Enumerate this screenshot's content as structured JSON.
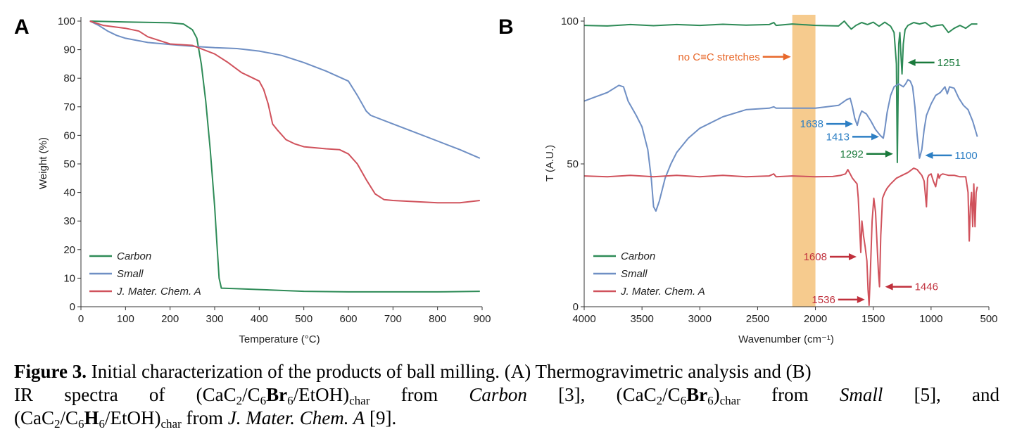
{
  "colors": {
    "carbon": "#2e8b57",
    "small": "#6f8fc4",
    "jmca": "#d0525c",
    "band": "#f5c27a",
    "arrow_annot": "#e8692c",
    "arrow_green": "#1a7a3c",
    "arrow_blue": "#2d7fc4",
    "arrow_red": "#c0303c"
  },
  "legend": {
    "carbon": "Carbon",
    "small": "Small",
    "jmca": "J. Mater. Chem. A"
  },
  "chart_data": [
    {
      "panel": "A",
      "type": "line",
      "xlabel": "Temperature (°C)",
      "ylabel": "Weight (%)",
      "xlim": [
        0,
        900
      ],
      "ylim": [
        0,
        100
      ],
      "xticks": [
        "0",
        "100",
        "200",
        "300",
        "400",
        "500",
        "600",
        "700",
        "800",
        "900"
      ],
      "yticks": [
        "0",
        "10",
        "20",
        "30",
        "40",
        "50",
        "60",
        "70",
        "80",
        "90",
        "100"
      ],
      "grid": false,
      "legend_position": "bottom-left",
      "series": [
        {
          "name": "Carbon",
          "x": [
            20,
            100,
            200,
            230,
            250,
            260,
            270,
            280,
            290,
            300,
            305,
            310,
            315,
            350,
            400,
            500,
            600,
            700,
            800,
            895
          ],
          "y": [
            100,
            99.7,
            99.4,
            99,
            97,
            94,
            85,
            72,
            55,
            35,
            22,
            10,
            6.5,
            6.3,
            6,
            5.4,
            5.2,
            5.2,
            5.2,
            5.4
          ]
        },
        {
          "name": "Small",
          "x": [
            20,
            40,
            60,
            80,
            100,
            150,
            200,
            250,
            300,
            350,
            400,
            450,
            500,
            550,
            600,
            620,
            640,
            650,
            700,
            750,
            800,
            850,
            895
          ],
          "y": [
            100,
            98.5,
            96.5,
            95,
            94,
            92.5,
            91.8,
            91.2,
            90.7,
            90.4,
            89.5,
            88,
            85.5,
            82.5,
            79,
            74,
            68.5,
            67,
            64,
            61,
            58,
            55,
            52
          ]
        },
        {
          "name": "J. Mater. Chem. A",
          "x": [
            20,
            50,
            100,
            130,
            150,
            180,
            200,
            250,
            300,
            330,
            360,
            380,
            400,
            410,
            420,
            430,
            440,
            460,
            480,
            500,
            550,
            580,
            600,
            620,
            640,
            660,
            680,
            700,
            750,
            800,
            850,
            895
          ],
          "y": [
            100,
            98.5,
            97.5,
            96.5,
            94.5,
            93,
            92,
            91.5,
            88.5,
            85.5,
            82,
            80.5,
            79,
            76,
            71,
            64,
            62,
            58.5,
            57,
            56,
            55.3,
            55,
            53.5,
            50,
            44.5,
            39.5,
            37.5,
            37.2,
            36.8,
            36.4,
            36.4,
            37.2
          ]
        }
      ]
    },
    {
      "panel": "B",
      "type": "line",
      "xlabel": "Wavenumber (cm⁻¹)",
      "ylabel": "T (A.U.)",
      "xlim": [
        4000,
        500
      ],
      "ylim": [
        0,
        100
      ],
      "xticks": [
        "4000",
        "3500",
        "3000",
        "2500",
        "2000",
        "1500",
        "1000",
        "500"
      ],
      "yticks": [
        "0",
        "50",
        "100"
      ],
      "grid": false,
      "legend_position": "bottom-left",
      "highlight_band": {
        "from": 2200,
        "to": 2000,
        "label": "no C≡C stretches"
      },
      "annotations": [
        {
          "label": "1251",
          "series": "Carbon",
          "x": 1251,
          "y": 85.5
        },
        {
          "label": "1292",
          "series": "Carbon",
          "x": 1292,
          "y": 53.5
        },
        {
          "label": "1638",
          "series": "Small",
          "x": 1638,
          "y": 64
        },
        {
          "label": "1413",
          "series": "Small",
          "x": 1413,
          "y": 59.5
        },
        {
          "label": "1100",
          "series": "Small",
          "x": 1100,
          "y": 53
        },
        {
          "label": "1608",
          "series": "J. Mater. Chem. A",
          "x": 1608,
          "y": 17.5
        },
        {
          "label": "1536",
          "series": "J. Mater. Chem. A",
          "x": 1536,
          "y": 2.5
        },
        {
          "label": "1446",
          "series": "J. Mater. Chem. A",
          "x": 1446,
          "y": 7
        }
      ],
      "series": [
        {
          "name": "Carbon",
          "x": [
            4000,
            3800,
            3600,
            3400,
            3200,
            3000,
            2800,
            2600,
            2400,
            2360,
            2340,
            2200,
            2000,
            1800,
            1750,
            1720,
            1690,
            1650,
            1600,
            1550,
            1500,
            1450,
            1400,
            1350,
            1320,
            1300,
            1292,
            1280,
            1270,
            1260,
            1251,
            1240,
            1225,
            1200,
            1150,
            1100,
            1050,
            1000,
            950,
            900,
            850,
            800,
            750,
            700,
            650,
            600
          ],
          "y": [
            98.5,
            98.3,
            98.8,
            98.4,
            98.8,
            98.5,
            98.9,
            98.6,
            98.8,
            99.5,
            98.5,
            99,
            98.5,
            98.3,
            100,
            98.5,
            97.2,
            98.5,
            99.5,
            98.8,
            99.6,
            98.2,
            99.6,
            98.2,
            96,
            85,
            50.5,
            92,
            96,
            88,
            81.5,
            92,
            97,
            98.5,
            99.5,
            99,
            99.5,
            98,
            98.5,
            98.7,
            96,
            97.5,
            98.5,
            97.5,
            99,
            99
          ]
        },
        {
          "name": "Small",
          "x": [
            4000,
            3900,
            3800,
            3700,
            3660,
            3620,
            3550,
            3500,
            3450,
            3420,
            3400,
            3380,
            3350,
            3300,
            3250,
            3200,
            3100,
            3000,
            2800,
            2600,
            2400,
            2360,
            2340,
            2200,
            2000,
            1800,
            1730,
            1700,
            1680,
            1660,
            1638,
            1620,
            1600,
            1560,
            1520,
            1480,
            1440,
            1413,
            1400,
            1380,
            1350,
            1320,
            1300,
            1280,
            1260,
            1240,
            1220,
            1200,
            1180,
            1160,
            1140,
            1120,
            1100,
            1080,
            1060,
            1040,
            1000,
            960,
            920,
            880,
            860,
            840,
            800,
            760,
            720,
            680,
            640,
            600
          ],
          "y": [
            72,
            73.5,
            75,
            77.5,
            77,
            72,
            67,
            63,
            55,
            45,
            35,
            33.5,
            37,
            45,
            50,
            54,
            59,
            62.5,
            66.5,
            69,
            69.5,
            70,
            69.5,
            69.5,
            69.5,
            70.5,
            72.5,
            73,
            70,
            66,
            63.5,
            66.5,
            68.5,
            67.5,
            65,
            62,
            60,
            59,
            62,
            68,
            74,
            77,
            77.5,
            78,
            77.5,
            77,
            78,
            79.5,
            79,
            77,
            70,
            60,
            52,
            55,
            62,
            67,
            71,
            74,
            75,
            77,
            74.5,
            77,
            76.5,
            73,
            70.5,
            69,
            65,
            59.5
          ]
        },
        {
          "name": "J. Mater. Chem. A",
          "x": [
            4000,
            3800,
            3600,
            3400,
            3200,
            3000,
            2800,
            2600,
            2400,
            2360,
            2340,
            2200,
            2000,
            1850,
            1780,
            1740,
            1720,
            1700,
            1680,
            1660,
            1640,
            1630,
            1620,
            1608,
            1598,
            1585,
            1570,
            1555,
            1545,
            1536,
            1525,
            1510,
            1495,
            1480,
            1465,
            1455,
            1446,
            1435,
            1420,
            1400,
            1380,
            1350,
            1300,
            1250,
            1200,
            1150,
            1120,
            1100,
            1080,
            1060,
            1040,
            1030,
            1020,
            1000,
            980,
            960,
            940,
            930,
            920,
            900,
            850,
            800,
            750,
            700,
            680,
            670,
            660,
            650,
            640,
            630,
            620,
            610,
            600
          ],
          "y": [
            45.8,
            45.5,
            46,
            45.5,
            46,
            45.5,
            46,
            45.5,
            45.8,
            46.5,
            45.5,
            45.8,
            45.5,
            45.6,
            46,
            46.5,
            48,
            46.5,
            45,
            44,
            43,
            38,
            30,
            19,
            30,
            25,
            21,
            16,
            6,
            0.5,
            12,
            30,
            38,
            33,
            20,
            12,
            7,
            25,
            38,
            40,
            41.5,
            43,
            45,
            46,
            47,
            48.5,
            48,
            47,
            46,
            44,
            35,
            45,
            46,
            46.5,
            44,
            42,
            46.5,
            45,
            46,
            46.5,
            46,
            46,
            45.5,
            45.5,
            40,
            23,
            35,
            40,
            28,
            43,
            28,
            40,
            42
          ]
        }
      ]
    }
  ],
  "caption": {
    "fig_label": "Figure 3.",
    "sentence1": " Initial characterization of the products of ball milling. (A) Thermogravimetric analysis and (B)",
    "line2_a": "IR spectra of (CaC",
    "sub2": "2",
    "slash_c": "/C",
    "sub6": "6",
    "br": "Br",
    "etoh_close": "/EtOH)",
    "sub_char": "char",
    "from1": " from ",
    "carbon_ref": "Carbon",
    "ref3": " [3], (CaC",
    "close_paren": ")",
    "small_ref": "Small",
    "ref5_and": " [5], and",
    "line3_a": "(CaC",
    "h": "H",
    "jmca_ref": "J. Mater. Chem. A",
    "ref9": " [9]."
  }
}
